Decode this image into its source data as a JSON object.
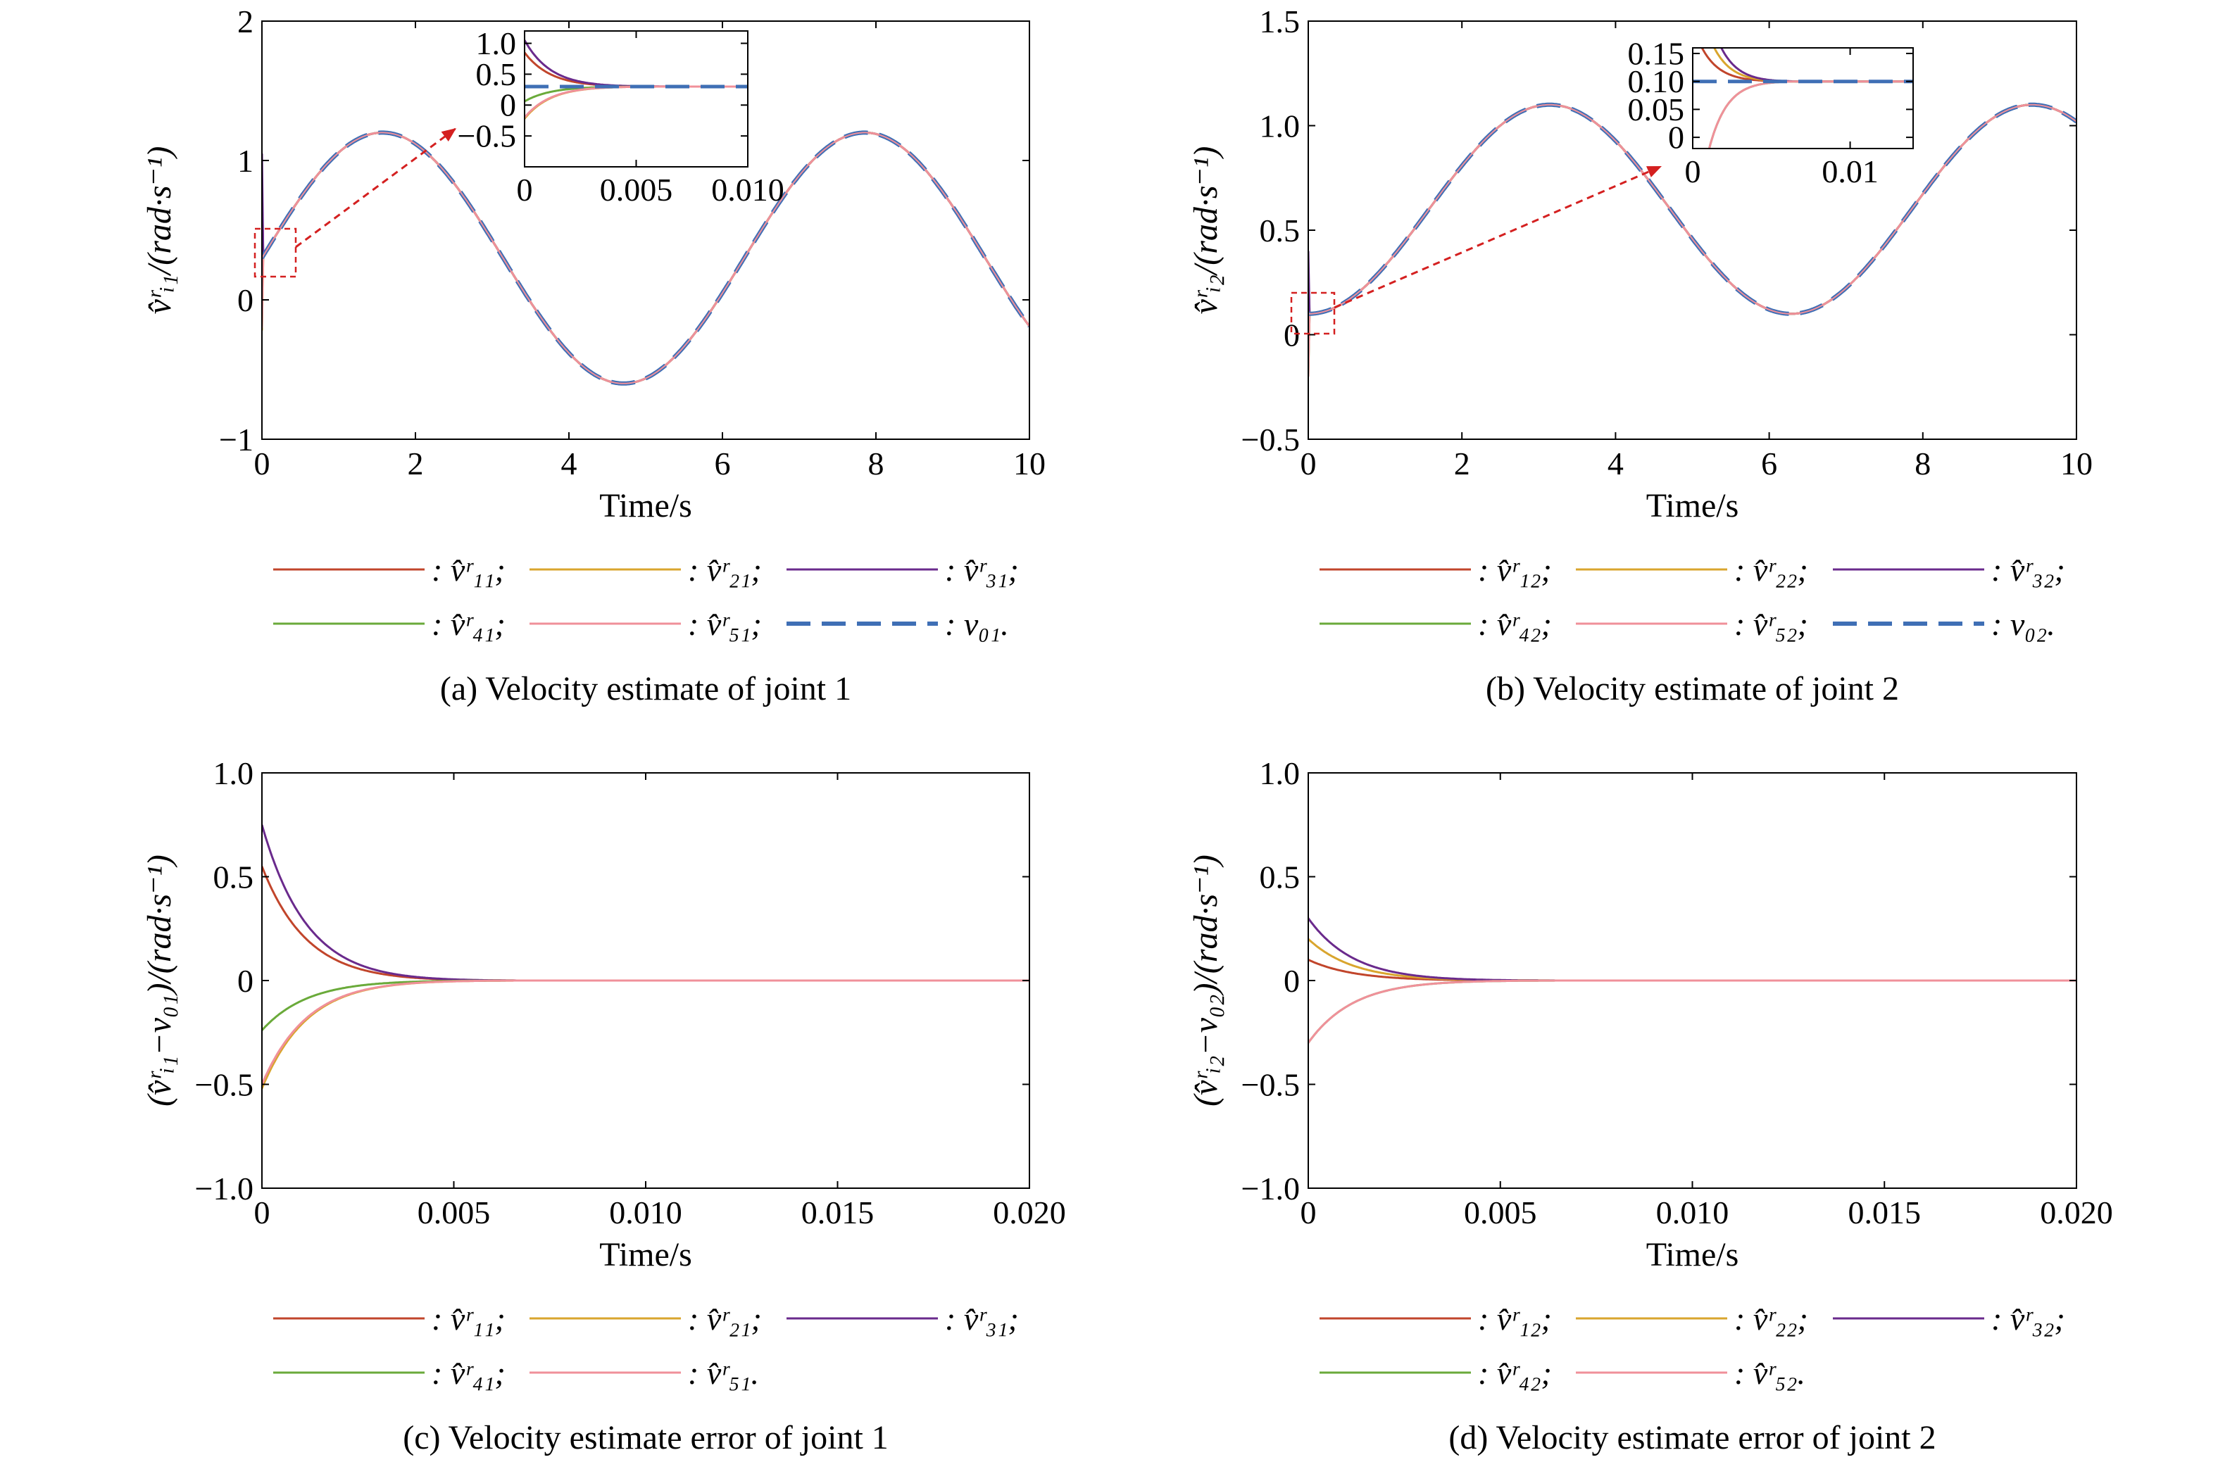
{
  "figure": {
    "colors": {
      "c1": "#c1452b",
      "c2": "#d9a52e",
      "c3": "#6a2a8c",
      "c4": "#6aaa3a",
      "c5": "#f0909a",
      "ref": "#3f6fb5",
      "zoombox": "#d42020"
    }
  },
  "chart_data": [
    {
      "id": "a",
      "type": "line",
      "caption": "(a) Velocity estimate of joint 1",
      "xlabel": "Time/s",
      "ylabel": "v̂ʳᵢ₁/(rad·s⁻¹)",
      "xlim": [
        0,
        10
      ],
      "ylim": [
        -1,
        2
      ],
      "xticks": [
        "0",
        "2",
        "4",
        "6",
        "8",
        "10"
      ],
      "yticks": [
        "−1",
        "0",
        "1",
        "2"
      ],
      "reference_signal": "0.3 + 0.9*sin(t)",
      "series": [
        {
          "name": ": v̂ʳ₁₁;",
          "color_key": "c1",
          "initial_error": 0.55
        },
        {
          "name": ": v̂ʳ₂₁;",
          "color_key": "c2",
          "initial_error": -0.52
        },
        {
          "name": ": v̂ʳ₃₁;",
          "color_key": "c3",
          "initial_error": 0.75
        },
        {
          "name": ": v̂ʳ₄₁;",
          "color_key": "c4",
          "initial_error": -0.24
        },
        {
          "name": ": v̂ʳ₅₁;",
          "color_key": "c5",
          "initial_error": -0.5
        },
        {
          "name": ": v₀₁.",
          "color_key": "ref",
          "dashed": true
        }
      ],
      "inset": {
        "xlim": [
          0,
          0.01
        ],
        "ylim": [
          -1.0,
          1.2
        ],
        "xticks": [
          "0",
          "0.005",
          "0.010"
        ],
        "yticks": [
          "1.0",
          "0.5",
          "0",
          "−0.5"
        ]
      }
    },
    {
      "id": "b",
      "type": "line",
      "caption": "(b) Velocity estimate of joint 2",
      "xlabel": "Time/s",
      "ylabel": "v̂ʳᵢ₂/(rad·s⁻¹)",
      "xlim": [
        0,
        10
      ],
      "ylim": [
        -0.5,
        1.5
      ],
      "xticks": [
        "0",
        "2",
        "4",
        "6",
        "8",
        "10"
      ],
      "yticks": [
        "−0.5",
        "0",
        "0.5",
        "1.0",
        "1.5"
      ],
      "reference_signal": "0.6 - 0.5*cos(t)",
      "series": [
        {
          "name": ": v̂ʳ₁₂;",
          "color_key": "c1",
          "initial_error": 0.1
        },
        {
          "name": ": v̂ʳ₂₂;",
          "color_key": "c2",
          "initial_error": 0.2
        },
        {
          "name": ": v̂ʳ₃₂;",
          "color_key": "c3",
          "initial_error": 0.3
        },
        {
          "name": ": v̂ʳ₄₂;",
          "color_key": "c4",
          "initial_error": -0.3
        },
        {
          "name": ": v̂ʳ₅₂;",
          "color_key": "c5",
          "initial_error": -0.3
        },
        {
          "name": ": v₀₂.",
          "color_key": "ref",
          "dashed": true
        }
      ],
      "inset": {
        "xlim": [
          0,
          0.014
        ],
        "ylim": [
          -0.02,
          0.16
        ],
        "xticks": [
          "0",
          "0.01"
        ],
        "yticks": [
          "0.15",
          "0.10",
          "0.05",
          "0"
        ]
      }
    },
    {
      "id": "c",
      "type": "line",
      "caption": "(c) Velocity estimate error of joint 1",
      "xlabel": "Time/s",
      "ylabel": "(v̂ʳᵢ₁−v₀₁)/(rad·s⁻¹)",
      "xlim": [
        0,
        0.02
      ],
      "ylim": [
        -1,
        1
      ],
      "xticks": [
        "0",
        "0.005",
        "0.010",
        "0.015",
        "0.020"
      ],
      "yticks": [
        "−1.0",
        "−0.5",
        "0",
        "0.5",
        "1.0"
      ],
      "series": [
        {
          "name": ": v̂ʳ₁₁;",
          "color_key": "c1",
          "initial_error": 0.55
        },
        {
          "name": ": v̂ʳ₂₁;",
          "color_key": "c2",
          "initial_error": -0.52
        },
        {
          "name": ": v̂ʳ₃₁;",
          "color_key": "c3",
          "initial_error": 0.75
        },
        {
          "name": ": v̂ʳ₄₁;",
          "color_key": "c4",
          "initial_error": -0.24
        },
        {
          "name": ": v̂ʳ₅₁.",
          "color_key": "c5",
          "initial_error": -0.5
        }
      ],
      "convergence_time": 0.0065
    },
    {
      "id": "d",
      "type": "line",
      "caption": "(d) Velocity estimate error of joint 2",
      "xlabel": "Time/s",
      "ylabel": "(v̂ʳᵢ₂−v₀₂)/(rad·s⁻¹)",
      "xlim": [
        0,
        0.02
      ],
      "ylim": [
        -1,
        1
      ],
      "xticks": [
        "0",
        "0.005",
        "0.010",
        "0.015",
        "0.020"
      ],
      "yticks": [
        "−1.0",
        "−0.5",
        "0",
        "0.5",
        "1.0"
      ],
      "series": [
        {
          "name": ": v̂ʳ₁₂;",
          "color_key": "c1",
          "initial_error": 0.1
        },
        {
          "name": ": v̂ʳ₂₂;",
          "color_key": "c2",
          "initial_error": 0.2
        },
        {
          "name": ": v̂ʳ₃₂;",
          "color_key": "c3",
          "initial_error": 0.3
        },
        {
          "name": ": v̂ʳ₄₂;",
          "color_key": "c4",
          "initial_error": -0.3
        },
        {
          "name": ": v̂ʳ₅₂.",
          "color_key": "c5",
          "initial_error": -0.3
        }
      ],
      "convergence_time": 0.0065
    }
  ]
}
